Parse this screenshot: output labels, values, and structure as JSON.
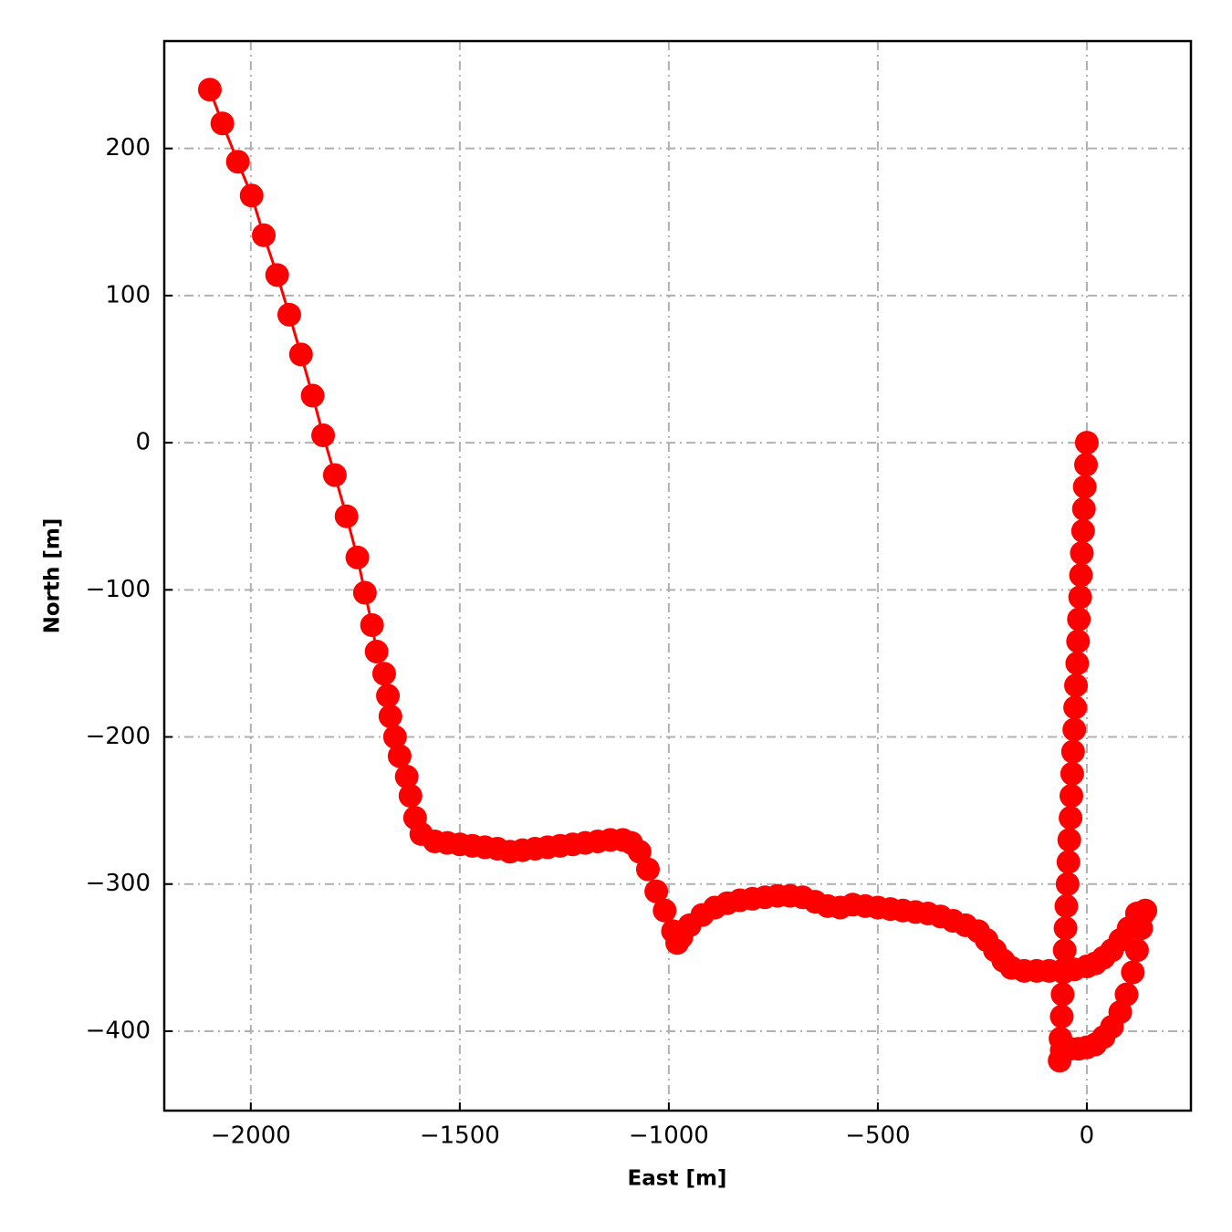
{
  "chart_data": {
    "type": "line",
    "x_label": "East [m]",
    "y_label": "North [m]",
    "color": "#ff0000",
    "grid": true,
    "xlim": [
      -2207,
      249
    ],
    "ylim": [
      -454,
      273
    ],
    "xticks": [
      {
        "value": -2000,
        "label": "−2000"
      },
      {
        "value": -1500,
        "label": "−1500"
      },
      {
        "value": -1000,
        "label": "−1000"
      },
      {
        "value": -500,
        "label": "−500"
      },
      0
    ],
    "yticks": [
      {
        "value": -400,
        "label": "−400"
      },
      {
        "value": -300,
        "label": "−300"
      },
      {
        "value": -200,
        "label": "−200"
      },
      {
        "value": -100,
        "label": "−100"
      },
      0,
      100,
      200
    ],
    "x": [
      0,
      -2,
      -5,
      -7,
      -9,
      -12,
      -14,
      -16,
      -19,
      -21,
      -23,
      -26,
      -28,
      -30,
      -33,
      -35,
      -37,
      -39,
      -42,
      -44,
      -46,
      -49,
      -51,
      -53,
      -56,
      -58,
      -60,
      -63,
      -65,
      -60,
      -40,
      -20,
      0,
      20,
      40,
      60,
      80,
      95,
      110,
      120,
      130,
      135,
      140,
      120,
      100,
      80,
      60,
      40,
      20,
      0,
      -30,
      -60,
      -90,
      -120,
      -150,
      -180,
      -200,
      -220,
      -240,
      -260,
      -290,
      -320,
      -350,
      -380,
      -410,
      -440,
      -470,
      -500,
      -530,
      -560,
      -590,
      -620,
      -650,
      -680,
      -710,
      -740,
      -770,
      -800,
      -830,
      -860,
      -890,
      -920,
      -950,
      -970,
      -980,
      -990,
      -1010,
      -1030,
      -1050,
      -1070,
      -1090,
      -1110,
      -1140,
      -1170,
      -1200,
      -1230,
      -1260,
      -1290,
      -1320,
      -1350,
      -1380,
      -1410,
      -1440,
      -1470,
      -1500,
      -1530,
      -1560,
      -1592,
      -1607,
      -1618,
      -1627,
      -1644,
      -1655,
      -1666,
      -1672,
      -1681,
      -1699,
      -1710,
      -1727,
      -1745,
      -1771,
      -1799,
      -1827,
      -1852,
      -1880,
      -1908,
      -1937,
      -1969,
      -1998,
      -2031,
      -2068,
      -2098
    ],
    "values": [
      0,
      -15,
      -30,
      -45,
      -60,
      -75,
      -90,
      -105,
      -120,
      -135,
      -150,
      -165,
      -180,
      -195,
      -210,
      -225,
      -240,
      -255,
      -270,
      -285,
      -300,
      -315,
      -330,
      -345,
      -360,
      -375,
      -390,
      -405,
      -420,
      -413,
      -412,
      -412,
      -411,
      -409,
      -404,
      -397,
      -387,
      -375,
      -360,
      -345,
      -330,
      -320,
      -318,
      -320,
      -330,
      -338,
      -345,
      -350,
      -354,
      -356,
      -358,
      -359,
      -359,
      -359,
      -359,
      -357,
      -352,
      -345,
      -338,
      -332,
      -328,
      -325,
      -322,
      -320,
      -319,
      -318,
      -317,
      -316,
      -315,
      -314,
      -316,
      -315,
      -312,
      -309,
      -308,
      -308,
      -309,
      -310,
      -311,
      -313,
      -316,
      -321,
      -328,
      -336,
      -340,
      -332,
      -318,
      -305,
      -290,
      -278,
      -272,
      -270,
      -270,
      -271,
      -272,
      -273,
      -274,
      -275,
      -276,
      -277,
      -278,
      -276,
      -275,
      -274,
      -273,
      -272,
      -271,
      -266,
      -255,
      -240,
      -227,
      -213,
      -200,
      -186,
      -172,
      -157,
      -142,
      -124,
      -102,
      -78,
      -50,
      -22,
      5,
      32,
      60,
      87,
      114,
      141,
      168,
      191,
      217,
      240
    ]
  }
}
